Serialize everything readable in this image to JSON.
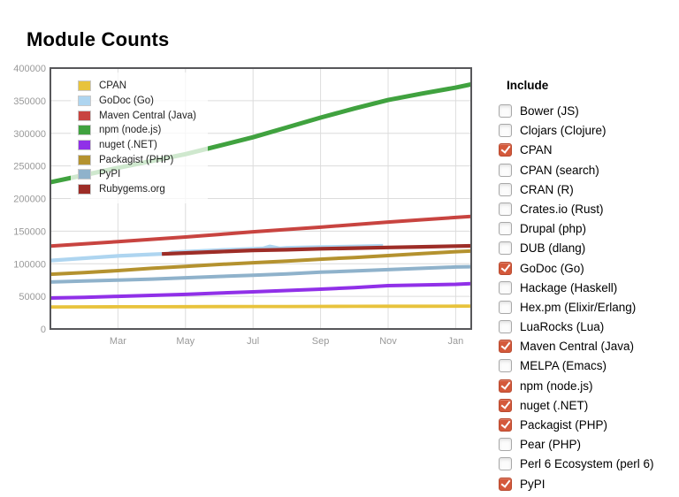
{
  "page": {
    "title": "Module Counts"
  },
  "include_panel": {
    "header": "Include",
    "checked_color": "#d4593b",
    "items": [
      {
        "label": "Bower (JS)",
        "checked": false
      },
      {
        "label": "Clojars (Clojure)",
        "checked": false
      },
      {
        "label": "CPAN",
        "checked": true
      },
      {
        "label": "CPAN (search)",
        "checked": false
      },
      {
        "label": "CRAN (R)",
        "checked": false
      },
      {
        "label": "Crates.io (Rust)",
        "checked": false
      },
      {
        "label": "Drupal (php)",
        "checked": false
      },
      {
        "label": "DUB (dlang)",
        "checked": false
      },
      {
        "label": "GoDoc (Go)",
        "checked": true
      },
      {
        "label": "Hackage (Haskell)",
        "checked": false
      },
      {
        "label": "Hex.pm (Elixir/Erlang)",
        "checked": false
      },
      {
        "label": "LuaRocks (Lua)",
        "checked": false
      },
      {
        "label": "Maven Central (Java)",
        "checked": true
      },
      {
        "label": "MELPA (Emacs)",
        "checked": false
      },
      {
        "label": "npm (node.js)",
        "checked": true
      },
      {
        "label": "nuget (.NET)",
        "checked": true
      },
      {
        "label": "Packagist (PHP)",
        "checked": true
      },
      {
        "label": "Pear (PHP)",
        "checked": false
      },
      {
        "label": "Perl 6 Ecosystem (perl 6)",
        "checked": false
      },
      {
        "label": "PyPI",
        "checked": true
      }
    ]
  },
  "chart_data": {
    "type": "line",
    "title": "Module Counts",
    "xlabel": "",
    "ylabel": "",
    "x_unit": "months, ~1 year span (late Jan through mid Jan)",
    "xlim": [
      0,
      12.45
    ],
    "ylim": [
      0,
      400000
    ],
    "grid": true,
    "legend_position": "top-left-inside",
    "yticks": [
      0,
      50000,
      100000,
      150000,
      200000,
      250000,
      300000,
      350000,
      400000
    ],
    "xticks": [
      {
        "label": "Mar",
        "month": 2
      },
      {
        "label": "May",
        "month": 4
      },
      {
        "label": "Jul",
        "month": 6
      },
      {
        "label": "Sep",
        "month": 8
      },
      {
        "label": "Nov",
        "month": 10
      },
      {
        "label": "Jan",
        "month": 12
      }
    ],
    "series": [
      {
        "name": "CPAN",
        "color": "#e8c33c",
        "width": 3.8,
        "x": [
          0,
          1,
          2,
          3,
          4,
          5,
          6,
          7,
          8,
          9,
          10,
          11,
          12,
          12.45
        ],
        "values": [
          33800,
          33900,
          34000,
          34100,
          34200,
          34300,
          34400,
          34500,
          34600,
          34700,
          34800,
          34900,
          35000,
          35100
        ]
      },
      {
        "name": "GoDoc (Go)",
        "color": "#aed5f0",
        "width": 4.2,
        "x": [
          0,
          1,
          2,
          3,
          3.5,
          3.6,
          4,
          5,
          6,
          6.3,
          6.5,
          6.8,
          7,
          8,
          9,
          9.85
        ],
        "values": [
          105000,
          108500,
          112000,
          114500,
          115500,
          117500,
          118500,
          121000,
          123000,
          123500,
          126500,
          123500,
          124500,
          125500,
          126500,
          127500
        ]
      },
      {
        "name": "Maven Central (Java)",
        "color": "#c84440",
        "width": 4,
        "x": [
          0,
          1,
          2,
          3,
          4,
          5,
          6,
          7,
          8,
          9,
          10,
          11,
          12,
          12.45
        ],
        "values": [
          127000,
          130500,
          134000,
          137500,
          141000,
          145000,
          149000,
          152500,
          156000,
          160000,
          164000,
          167500,
          171000,
          172500
        ]
      },
      {
        "name": "npm (node.js)",
        "color": "#40a23f",
        "width": 5,
        "x": [
          0,
          1,
          2,
          3,
          4,
          5,
          6,
          7,
          8,
          9,
          10,
          11,
          12,
          12.45
        ],
        "values": [
          225000,
          236000,
          247000,
          257500,
          268000,
          281000,
          294000,
          309000,
          324000,
          338000,
          351000,
          361000,
          370000,
          375000
        ]
      },
      {
        "name": "nuget (.NET)",
        "color": "#9030e8",
        "width": 4,
        "x": [
          0,
          1,
          2,
          3,
          4,
          5,
          6,
          7,
          8,
          9,
          10,
          11,
          12,
          12.45
        ],
        "values": [
          47500,
          48500,
          50000,
          51500,
          53000,
          55000,
          57000,
          59000,
          61000,
          63500,
          66500,
          67500,
          68500,
          69500
        ]
      },
      {
        "name": "Packagist (PHP)",
        "color": "#b4922f",
        "width": 4,
        "x": [
          0,
          1,
          2,
          3,
          4,
          5,
          6,
          7,
          8,
          9,
          10,
          11,
          12,
          12.45
        ],
        "values": [
          84000,
          86500,
          89500,
          93000,
          96000,
          99000,
          101500,
          104000,
          107000,
          109500,
          112500,
          115500,
          118500,
          119500
        ]
      },
      {
        "name": "PyPI",
        "color": "#8fb2cb",
        "width": 4,
        "x": [
          0,
          1,
          2,
          3,
          4,
          5,
          6,
          7,
          8,
          9,
          10,
          11,
          12,
          12.45
        ],
        "values": [
          72000,
          73500,
          75000,
          76500,
          78500,
          80500,
          82500,
          84500,
          87000,
          89000,
          91000,
          93000,
          95000,
          95500
        ]
      },
      {
        "name": "Rubygems.org",
        "color": "#9d2d27",
        "width": 4.2,
        "x": [
          3.3,
          4,
          5,
          6,
          7,
          8,
          9,
          10,
          11,
          12,
          12.45
        ],
        "values": [
          115000,
          116500,
          118500,
          120500,
          121500,
          123000,
          124000,
          125000,
          126000,
          127000,
          127500
        ]
      }
    ]
  }
}
